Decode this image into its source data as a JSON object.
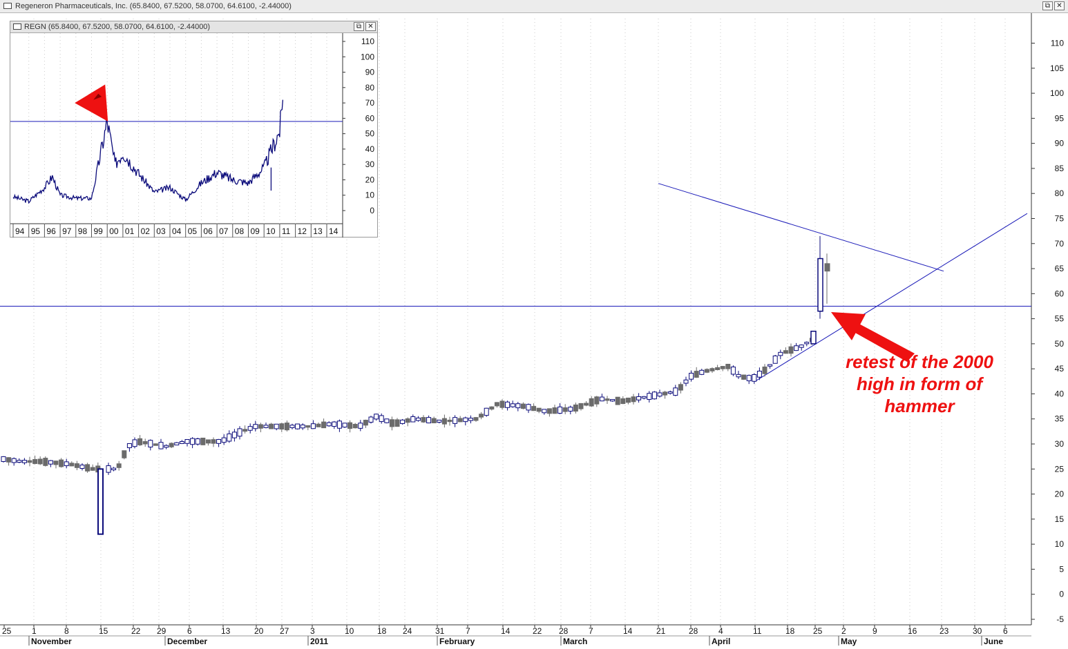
{
  "window": {
    "title": "Regeneron Pharmaceuticals, Inc. (65.8400, 67.5200, 58.0700, 64.6100, -2.44000)",
    "restore_glyph": "⧉",
    "close_glyph": "✕"
  },
  "inset": {
    "title": "REGN (65.8400, 67.5200, 58.0700, 64.6100, -2.44000)"
  },
  "annotation": {
    "lines": [
      "retest of the 2000",
      "high in form of",
      "hammer"
    ],
    "color": "#ee1111"
  },
  "colors": {
    "up": "#0a0a7a",
    "down": "#6b6b6b",
    "trend": "#1a1ab8",
    "grid": "#c8c8c8",
    "arrow": "#ee1111"
  },
  "chart_data": [
    {
      "type": "candlestick",
      "ylim": [
        -5,
        112
      ],
      "yticks": [
        -5,
        0,
        5,
        10,
        15,
        20,
        25,
        30,
        35,
        40,
        45,
        50,
        55,
        60,
        65,
        70,
        75,
        80,
        85,
        90,
        95,
        100,
        105,
        110
      ],
      "x_day_labels": [
        "25",
        "1",
        "8",
        "15",
        "22",
        "29",
        "6",
        "13",
        "20",
        "27",
        "3",
        "10",
        "18",
        "24",
        "31",
        "7",
        "14",
        "22",
        "28",
        "7",
        "14",
        "21",
        "28",
        "4",
        "11",
        "18",
        "25",
        "2",
        "9",
        "16",
        "23",
        "30",
        "6"
      ],
      "x_month_labels": [
        "November",
        "December",
        "2011",
        "February",
        "March",
        "April",
        "May",
        "June"
      ],
      "horizontal_line": 57.5,
      "trendline_resistance": [
        [
          0,
          82
        ],
        [
          1,
          64.5
        ]
      ],
      "trendline_support": [
        [
          0,
          42.5
        ],
        [
          1,
          76
        ]
      ],
      "hammer_candle": {
        "open": 56.5,
        "high": 71.5,
        "low": 55,
        "close": 67
      },
      "series_open": [
        27.0,
        26.5,
        25.5,
        24.5,
        12.0,
        25.0,
        29.0,
        30.0,
        30.5,
        33.5,
        34.0,
        33.5,
        35.0,
        36.0,
        34.5,
        38.0,
        36.0,
        39.0,
        40.0,
        45.0,
        44.5,
        48.0,
        50.0,
        56.5
      ],
      "series_close": [
        26.5,
        26.0,
        25.0,
        24.0,
        24.5,
        25.5,
        30.0,
        30.5,
        33.0,
        34.0,
        33.5,
        34.5,
        35.5,
        35.0,
        37.5,
        37.5,
        38.5,
        40.0,
        44.5,
        45.5,
        43.5,
        49.5,
        52.0,
        67.0
      ]
    },
    {
      "type": "line",
      "title": "REGN (65.8400, 67.5200, 58.0700, 64.6100, -2.44000)",
      "ylim": [
        -5,
        115
      ],
      "yticks": [
        0,
        10,
        20,
        30,
        40,
        50,
        60,
        70,
        80,
        90,
        100,
        110
      ],
      "x_labels": [
        "94",
        "95",
        "96",
        "97",
        "98",
        "99",
        "00",
        "01",
        "02",
        "03",
        "04",
        "05",
        "06",
        "07",
        "08",
        "09",
        "10",
        "11",
        "12",
        "13",
        "14"
      ],
      "horizontal_line": 58,
      "key_points": [
        {
          "x": "1994",
          "y": 9
        },
        {
          "x": "1995",
          "y": 6
        },
        {
          "x": "1996",
          "y": 15
        },
        {
          "x": "1996.5",
          "y": 22
        },
        {
          "x": "1997",
          "y": 10
        },
        {
          "x": "1998",
          "y": 8
        },
        {
          "x": "1999",
          "y": 8
        },
        {
          "x": "2000",
          "y": 58
        },
        {
          "x": "2000.5",
          "y": 30
        },
        {
          "x": "2001",
          "y": 38
        },
        {
          "x": "2002",
          "y": 24
        },
        {
          "x": "2003",
          "y": 12
        },
        {
          "x": "2004",
          "y": 15
        },
        {
          "x": "2005",
          "y": 7
        },
        {
          "x": "2006",
          "y": 18
        },
        {
          "x": "2007",
          "y": 25
        },
        {
          "x": "2008",
          "y": 20
        },
        {
          "x": "2009",
          "y": 18
        },
        {
          "x": "2010",
          "y": 28
        },
        {
          "x": "2011",
          "y": 52
        },
        {
          "x": "2011.2",
          "y": 72
        }
      ]
    }
  ]
}
